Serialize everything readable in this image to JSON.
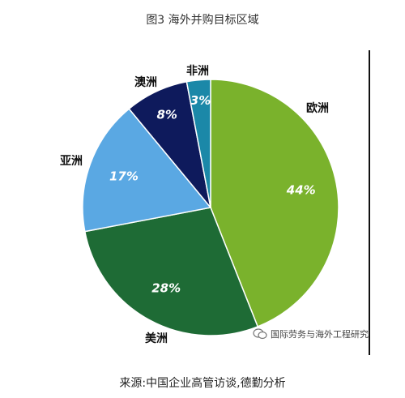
{
  "title": "图3 海外并购目标区域",
  "source": "来源:中国企业高管访谈,德勤分析",
  "watermark": {
    "text": "国际劳务与海外工程研究",
    "icon": "wechat-icon"
  },
  "chart_data": {
    "type": "pie",
    "title": "",
    "slices": [
      {
        "label": "欧洲",
        "value": 44,
        "value_label": "44%",
        "color": "#7ab22c"
      },
      {
        "label": "美洲",
        "value": 28,
        "value_label": "28%",
        "color": "#1e6b35"
      },
      {
        "label": "亚洲",
        "value": 17,
        "value_label": "17%",
        "color": "#5aa8e3"
      },
      {
        "label": "澳洲",
        "value": 8,
        "value_label": "8%",
        "color": "#0e1a5c"
      },
      {
        "label": "非洲",
        "value": 3,
        "value_label": "3%",
        "color": "#1b88a8"
      }
    ],
    "start": "12 o'clock",
    "direction": "clockwise"
  }
}
